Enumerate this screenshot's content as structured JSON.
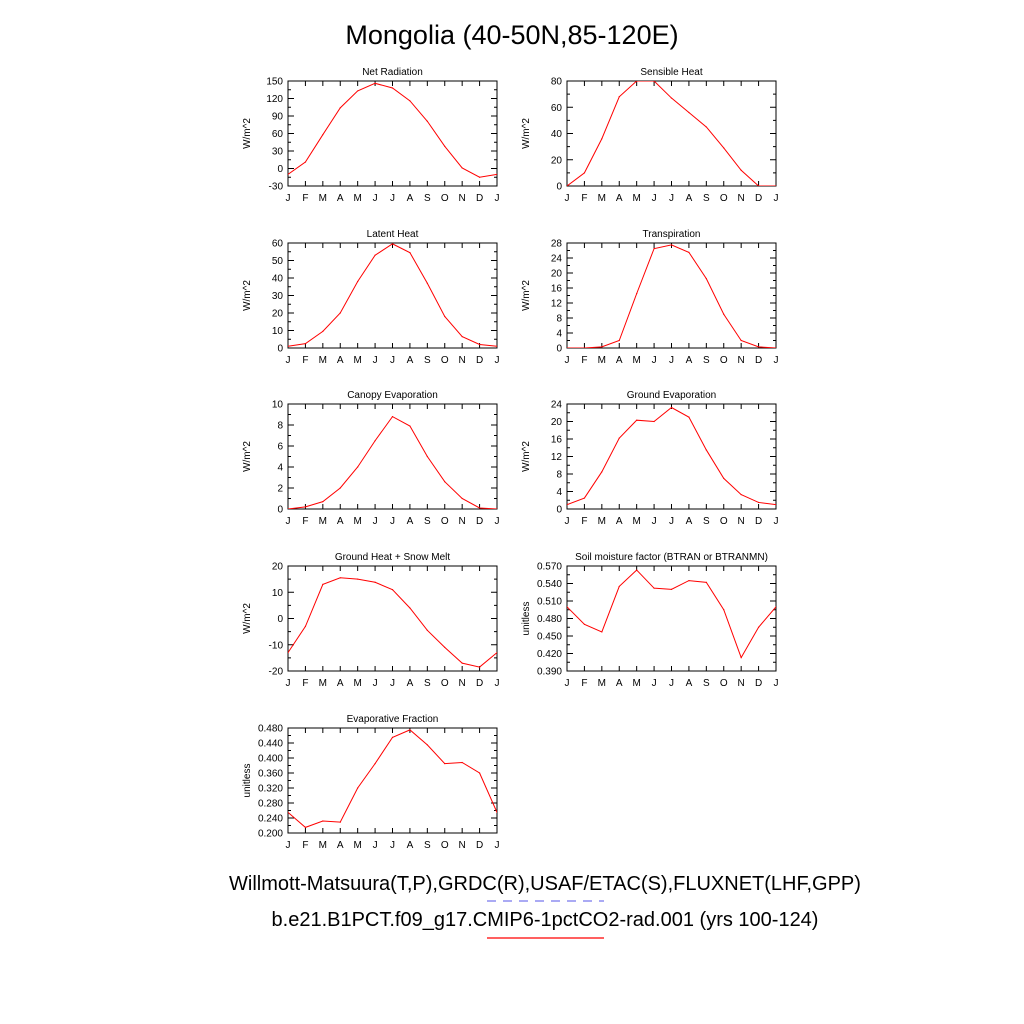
{
  "title": "Mongolia (40-50N,85-120E)",
  "months": [
    "J",
    "F",
    "M",
    "A",
    "M",
    "J",
    "J",
    "A",
    "S",
    "O",
    "N",
    "D",
    "J"
  ],
  "line_color": "#ff0000",
  "legend": {
    "obs_label": "Willmott-Matsuura(T,P),GRDC(R),USAF/ETAC(S),FLUXNET(LHF,GPP)",
    "obs_color": "#7777ee",
    "obs_style": "dashed",
    "model_label": "b.e21.B1PCT.f09_g17.CMIP6-1pctCO2-rad.001 (yrs 100-124)",
    "model_color": "#ff0000",
    "model_style": "solid"
  },
  "chart_data": [
    {
      "type": "line",
      "title": "Net Radiation",
      "ylabel": "W/m^2",
      "ylim": [
        -30,
        150
      ],
      "yticks": [
        "-30",
        "0",
        "30",
        "60",
        "90",
        "120",
        "150"
      ],
      "values": [
        -10,
        11,
        58,
        104,
        133,
        146,
        138,
        116,
        81,
        38,
        1,
        -15,
        -10
      ]
    },
    {
      "type": "line",
      "title": "Sensible Heat",
      "ylabel": "W/m^2",
      "ylim": [
        0,
        80
      ],
      "yticks": [
        "0",
        "20",
        "40",
        "60",
        "80"
      ],
      "values": [
        0,
        10,
        36,
        68,
        80,
        80,
        67,
        56,
        45,
        29,
        12,
        0,
        0
      ]
    },
    {
      "type": "line",
      "title": "Latent Heat",
      "ylabel": "W/m^2",
      "ylim": [
        0,
        60
      ],
      "yticks": [
        "0",
        "10",
        "20",
        "30",
        "40",
        "50",
        "60"
      ],
      "values": [
        1,
        2.5,
        9.5,
        20,
        38,
        53,
        59.5,
        54.5,
        37,
        18,
        6.5,
        2,
        1
      ]
    },
    {
      "type": "line",
      "title": "Transpiration",
      "ylabel": "W/m^2",
      "ylim": [
        0,
        28
      ],
      "yticks": [
        "0",
        "4",
        "8",
        "12",
        "16",
        "20",
        "24",
        "28"
      ],
      "values": [
        0,
        0,
        0.3,
        2,
        14.5,
        26.5,
        27.5,
        25.5,
        18.5,
        9,
        2,
        0.3,
        0
      ]
    },
    {
      "type": "line",
      "title": "Canopy Evaporation",
      "ylabel": "W/m^2",
      "ylim": [
        0,
        10
      ],
      "yticks": [
        "0",
        "2",
        "4",
        "6",
        "8",
        "10"
      ],
      "values": [
        0,
        0.2,
        0.7,
        2,
        4,
        6.5,
        8.8,
        7.9,
        5,
        2.6,
        1,
        0.1,
        0
      ]
    },
    {
      "type": "line",
      "title": "Ground Evaporation",
      "ylabel": "W/m^2",
      "ylim": [
        0,
        24
      ],
      "yticks": [
        "0",
        "4",
        "8",
        "12",
        "16",
        "20",
        "24"
      ],
      "values": [
        1,
        2.5,
        8.5,
        16.2,
        20.3,
        20,
        23.2,
        21,
        13.5,
        7,
        3.3,
        1.5,
        1
      ]
    },
    {
      "type": "line",
      "title": "Ground Heat + Snow Melt",
      "ylabel": "W/m^2",
      "ylim": [
        -20,
        20
      ],
      "yticks": [
        "-20",
        "-10",
        "0",
        "10",
        "20"
      ],
      "values": [
        -13,
        -3,
        13,
        15.5,
        15,
        13.8,
        11,
        4,
        -4.5,
        -11,
        -17,
        -18.5,
        -13
      ]
    },
    {
      "type": "line",
      "title": "Soil moisture factor (BTRAN or BTRANMN)",
      "ylabel": "unitless",
      "ylim": [
        0.39,
        0.57
      ],
      "yticks": [
        "0.390",
        "0.420",
        "0.450",
        "0.480",
        "0.510",
        "0.540",
        "0.570"
      ],
      "values": [
        0.5,
        0.47,
        0.457,
        0.535,
        0.563,
        0.532,
        0.53,
        0.545,
        0.542,
        0.495,
        0.413,
        0.465,
        0.5
      ]
    },
    {
      "type": "line",
      "title": "Evaporative Fraction",
      "ylabel": "unitless",
      "ylim": [
        0.2,
        0.48
      ],
      "yticks": [
        "0.200",
        "0.240",
        "0.280",
        "0.320",
        "0.360",
        "0.400",
        "0.440",
        "0.480"
      ],
      "values": [
        0.255,
        0.215,
        0.232,
        0.229,
        0.32,
        0.385,
        0.455,
        0.475,
        0.435,
        0.385,
        0.388,
        0.36,
        0.255
      ]
    }
  ]
}
